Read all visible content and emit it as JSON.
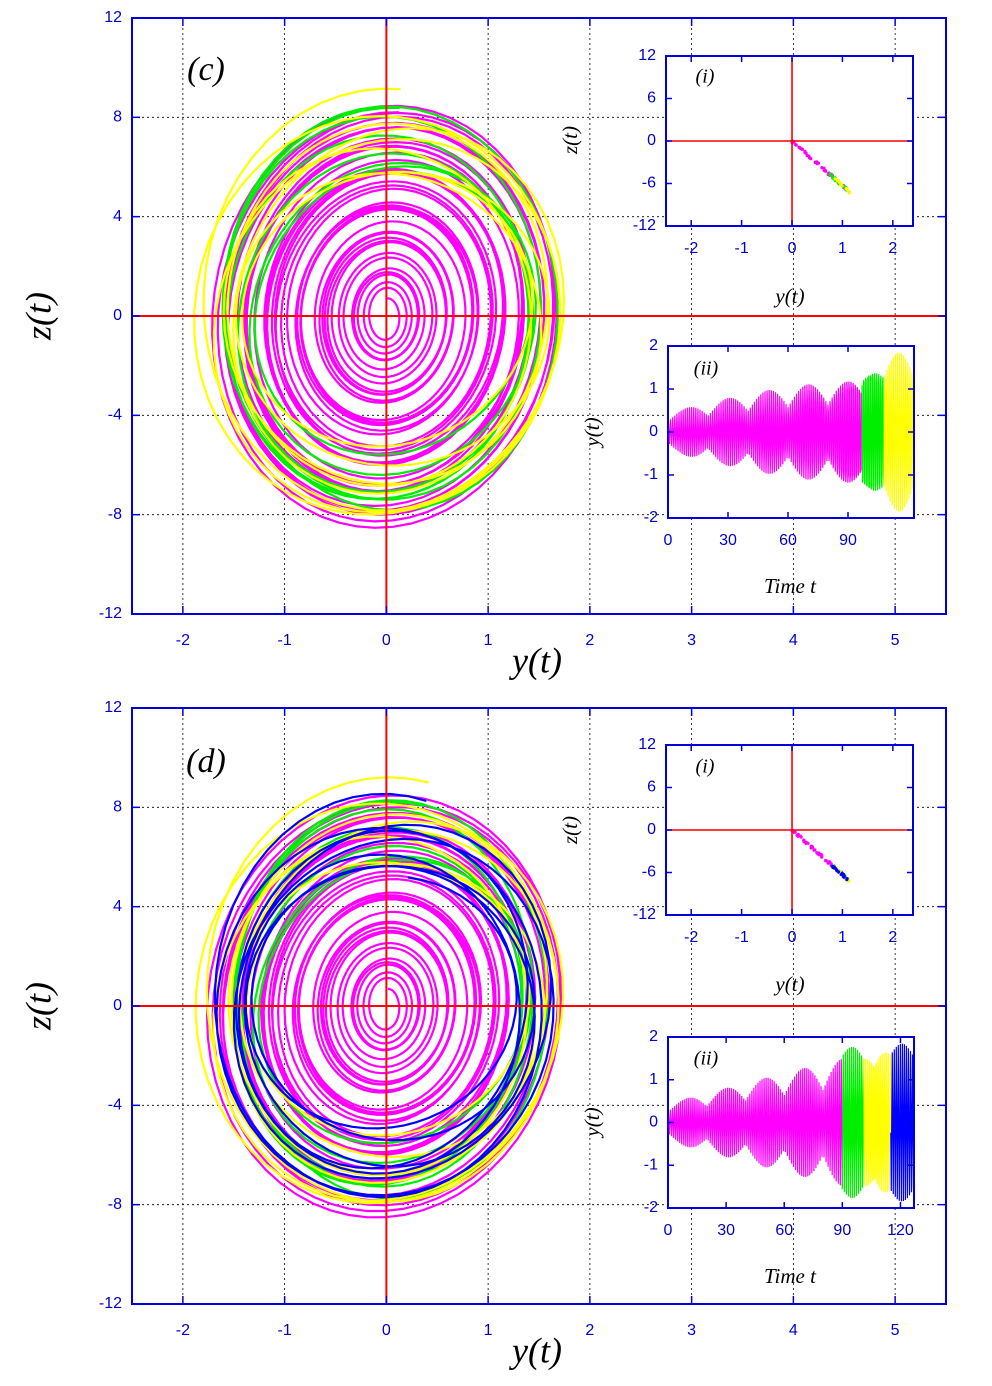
{
  "colors": {
    "frame": "#0000dd",
    "axis_zero": "#ff0000",
    "grid": "#000000",
    "magenta": "#ff00ff",
    "green": "#00ee00",
    "yellow": "#ffff00",
    "blue": "#0000ff"
  },
  "chart_data": [
    {
      "id": "c-main",
      "type": "line",
      "panel_tag": "(c)",
      "xlabel": "y(t)",
      "ylabel": "z(t)",
      "xlim": [
        -2.5,
        5.5
      ],
      "ylim": [
        -12,
        12
      ],
      "xticks": [
        "-2",
        "-1",
        "0",
        "1",
        "2",
        "3",
        "4",
        "5"
      ],
      "yticks": [
        "12",
        "8",
        "4",
        "0",
        "-4",
        "-8",
        "-12"
      ],
      "grid": true,
      "series": [
        {
          "color": "magenta",
          "amp_y": [
            0.1,
            1.7
          ],
          "amp_z": [
            0.7,
            8.5
          ],
          "turns": 38
        },
        {
          "color": "green",
          "amp_y": [
            1.35,
            1.7
          ],
          "amp_z": [
            5.5,
            8.2
          ],
          "turns": 7
        },
        {
          "color": "yellow",
          "amp_y": [
            1.4,
            1.78
          ],
          "amp_z": [
            5.5,
            8.6
          ],
          "turns": 8
        }
      ]
    },
    {
      "id": "c-inset-i",
      "type": "scatter",
      "panel_tag": "(i)",
      "xlabel": "y(t)",
      "ylabel": "z(t)",
      "xlim": [
        -2.5,
        2.4
      ],
      "ylim": [
        -12,
        12
      ],
      "xticks": [
        "-2",
        "-1",
        "0",
        "1",
        "2"
      ],
      "yticks": [
        "12",
        "6",
        "0",
        "-6",
        "-12"
      ],
      "series": [
        {
          "color": "magenta",
          "x_range": [
            0.0,
            1.15
          ],
          "slope": -6.3
        },
        {
          "color": "green",
          "x_range": [
            0.75,
            1.1
          ],
          "slope": -6.3
        },
        {
          "color": "yellow",
          "x_range": [
            0.85,
            1.15
          ],
          "slope": -6.3
        }
      ]
    },
    {
      "id": "c-inset-ii",
      "type": "line",
      "panel_tag": "(ii)",
      "xlabel": "Time t",
      "ylabel": "y(t)",
      "xlim": [
        0,
        123
      ],
      "ylim": [
        -2,
        2
      ],
      "xticks": [
        "0",
        "30",
        "60",
        "90"
      ],
      "yticks": [
        "2",
        "1",
        "0",
        "-1",
        "-2"
      ],
      "series": [
        {
          "color": "magenta",
          "t_range": [
            0,
            97
          ]
        },
        {
          "color": "green",
          "t_range": [
            97,
            108
          ]
        },
        {
          "color": "yellow",
          "t_range": [
            108,
            123
          ]
        }
      ]
    },
    {
      "id": "d-main",
      "type": "line",
      "panel_tag": "(d)",
      "xlabel": "y(t)",
      "ylabel": "z(t)",
      "xlim": [
        -2.5,
        5.5
      ],
      "ylim": [
        -12,
        12
      ],
      "xticks": [
        "-2",
        "-1",
        "0",
        "1",
        "2",
        "3",
        "4",
        "5"
      ],
      "yticks": [
        "12",
        "8",
        "4",
        "0",
        "-4",
        "-8",
        "-12"
      ],
      "grid": true,
      "series": [
        {
          "color": "magenta",
          "amp_y": [
            0.1,
            1.75
          ],
          "amp_z": [
            0.7,
            8.5
          ],
          "turns": 38
        },
        {
          "color": "green",
          "amp_y": [
            1.3,
            1.6
          ],
          "amp_z": [
            5.5,
            8.0
          ],
          "turns": 7
        },
        {
          "color": "yellow",
          "amp_y": [
            1.35,
            1.78
          ],
          "amp_z": [
            5.5,
            8.6
          ],
          "turns": 8
        },
        {
          "color": "blue",
          "amp_y": [
            1.3,
            1.62
          ],
          "amp_z": [
            5.2,
            8.0
          ],
          "turns": 8
        }
      ]
    },
    {
      "id": "d-inset-i",
      "type": "scatter",
      "panel_tag": "(i)",
      "xlabel": "y(t)",
      "ylabel": "z(t)",
      "xlim": [
        -2.5,
        2.4
      ],
      "ylim": [
        -12,
        12
      ],
      "xticks": [
        "-2",
        "-1",
        "0",
        "1",
        "2"
      ],
      "yticks": [
        "12",
        "6",
        "0",
        "-6",
        "-12"
      ],
      "series": [
        {
          "color": "magenta",
          "x_range": [
            0.0,
            1.15
          ],
          "slope": -6.3
        },
        {
          "color": "green",
          "x_range": [
            0.8,
            1.1
          ],
          "slope": -6.3
        },
        {
          "color": "yellow",
          "x_range": [
            0.85,
            1.15
          ],
          "slope": -6.3
        },
        {
          "color": "blue",
          "x_range": [
            0.8,
            1.1
          ],
          "slope": -6.3
        }
      ]
    },
    {
      "id": "d-inset-ii",
      "type": "line",
      "panel_tag": "(ii)",
      "xlabel": "Time t",
      "ylabel": "y(t)",
      "xlim": [
        0,
        127
      ],
      "ylim": [
        -2,
        2
      ],
      "xticks": [
        "0",
        "30",
        "60",
        "90",
        "120"
      ],
      "yticks": [
        "2",
        "1",
        "0",
        "-1",
        "-2"
      ],
      "series": [
        {
          "color": "magenta",
          "t_range": [
            0,
            90
          ]
        },
        {
          "color": "green",
          "t_range": [
            90,
            101
          ]
        },
        {
          "color": "yellow",
          "t_range": [
            101,
            115
          ]
        },
        {
          "color": "blue",
          "t_range": [
            115,
            127
          ]
        }
      ]
    }
  ]
}
